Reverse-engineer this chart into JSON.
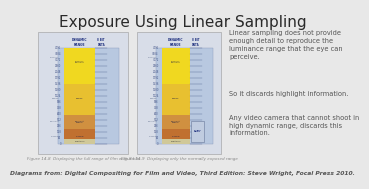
{
  "background_color": "#e8e8e8",
  "title": "Exposure Using Linear Sampling",
  "title_fontsize": 11,
  "title_color": "#2a2a2a",
  "body_text_1": "Linear sampling does not provide\nenough detail to reproduce the\nluminance range that the eye can\nperceive.",
  "body_text_2": "So it discards highlight information.",
  "body_text_3": "Any video camera that cannot shoot in\nhigh dynamic range, discards this\ninformation.",
  "body_fontsize": 4.8,
  "body_color": "#555555",
  "caption_text": "Diagrams from: Digital Compositing for Film and Video, Third Edition: Steve Wright, Focal Press 2010.",
  "caption_fontsize": 4.3,
  "caption_color": "#555555",
  "fig1_caption": "Figure 14-8  Displaying the full range of film with 8 bits",
  "fig2_caption": "Figure 14-9  Displaying only the normally exposed range",
  "fig_caption_fontsize": 3.0,
  "fig_caption_color": "#888888",
  "page_bg": "#d8dde8",
  "chart_bg": "#b8c8e0",
  "yellow_color": "#f0d830",
  "orange_color": "#d89040",
  "skin_color": "#c8a060",
  "near_black_color": "#d0c898",
  "header_color": "#223380",
  "tick_color": "#445588",
  "num_ticks": 16
}
